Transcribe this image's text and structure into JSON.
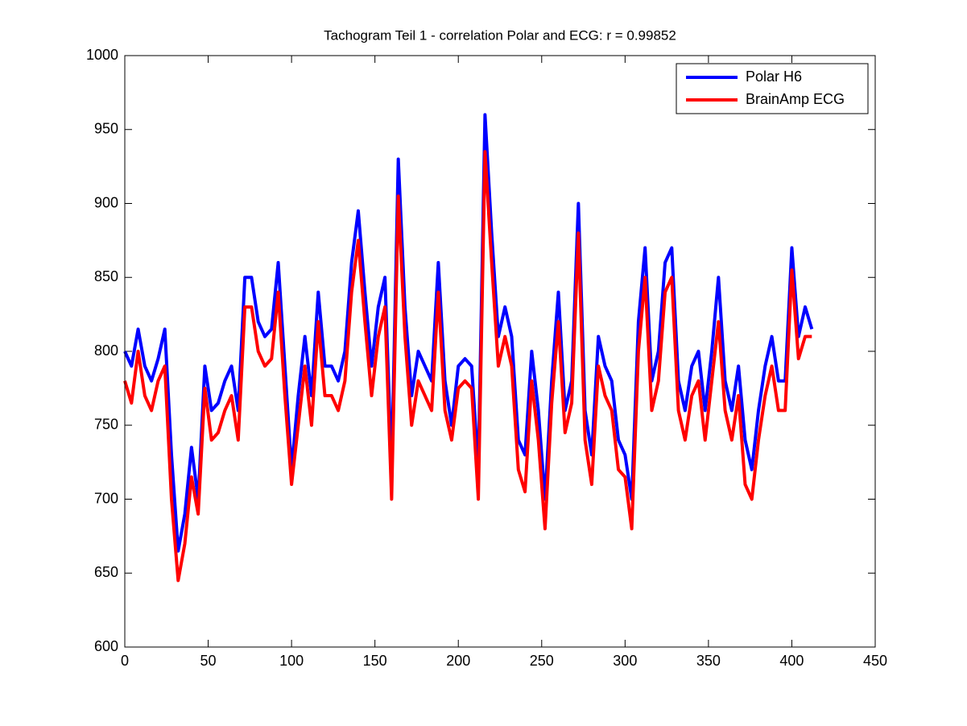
{
  "chart_data": {
    "type": "line",
    "title": "Tachogram Teil 1 - correlation Polar and ECG: r = 0.99852",
    "x": [
      0,
      4,
      8,
      12,
      16,
      20,
      24,
      28,
      32,
      36,
      40,
      44,
      48,
      52,
      56,
      60,
      64,
      68,
      72,
      76,
      80,
      84,
      88,
      92,
      96,
      100,
      104,
      108,
      112,
      116,
      120,
      124,
      128,
      132,
      136,
      140,
      144,
      148,
      152,
      156,
      160,
      164,
      168,
      172,
      176,
      180,
      184,
      188,
      192,
      196,
      200,
      204,
      208,
      212,
      216,
      220,
      224,
      228,
      232,
      236,
      240,
      244,
      248,
      252,
      256,
      260,
      264,
      268,
      272,
      276,
      280,
      284,
      288,
      292,
      296,
      300,
      304,
      308,
      312,
      316,
      320,
      324,
      328,
      332,
      336,
      340,
      344,
      348,
      352,
      356,
      360,
      364,
      368,
      372,
      376,
      380,
      384,
      388,
      392,
      396,
      400,
      404,
      408,
      412
    ],
    "series": [
      {
        "name": "Polar H6",
        "color": "#0000ff",
        "values": [
          800,
          790,
          815,
          790,
          780,
          795,
          815,
          730,
          665,
          690,
          735,
          700,
          790,
          760,
          765,
          780,
          790,
          760,
          850,
          850,
          820,
          810,
          815,
          860,
          790,
          720,
          770,
          810,
          770,
          840,
          790,
          790,
          780,
          800,
          860,
          895,
          840,
          790,
          830,
          850,
          720,
          930,
          830,
          770,
          800,
          790,
          780,
          860,
          780,
          750,
          790,
          795,
          790,
          720,
          960,
          880,
          810,
          830,
          810,
          740,
          730,
          800,
          760,
          700,
          780,
          840,
          760,
          780,
          900,
          760,
          730,
          810,
          790,
          780,
          740,
          730,
          700,
          820,
          870,
          780,
          800,
          860,
          870,
          780,
          760,
          790,
          800,
          760,
          800,
          850,
          780,
          760,
          790,
          740,
          720,
          760,
          790,
          810,
          780,
          780,
          870,
          810,
          830,
          815
        ]
      },
      {
        "name": "BrainAmp ECG",
        "color": "#ff0000",
        "values": [
          780,
          765,
          800,
          770,
          760,
          780,
          790,
          700,
          645,
          670,
          715,
          690,
          775,
          740,
          745,
          760,
          770,
          740,
          830,
          830,
          800,
          790,
          795,
          840,
          770,
          710,
          750,
          790,
          750,
          820,
          770,
          770,
          760,
          780,
          840,
          875,
          820,
          770,
          810,
          830,
          700,
          905,
          810,
          750,
          780,
          770,
          760,
          840,
          760,
          740,
          775,
          780,
          775,
          700,
          935,
          860,
          790,
          810,
          790,
          720,
          705,
          780,
          740,
          680,
          765,
          820,
          745,
          765,
          880,
          740,
          710,
          790,
          770,
          760,
          720,
          715,
          680,
          800,
          850,
          760,
          780,
          840,
          850,
          760,
          740,
          770,
          780,
          740,
          780,
          820,
          760,
          740,
          770,
          710,
          700,
          740,
          770,
          790,
          760,
          760,
          855,
          795,
          810,
          810
        ]
      }
    ],
    "xlim": [
      0,
      450
    ],
    "xticks": [
      0,
      50,
      100,
      150,
      200,
      250,
      300,
      350,
      400,
      450
    ],
    "ylim": [
      600,
      1000
    ],
    "yticks": [
      600,
      650,
      700,
      750,
      800,
      850,
      900,
      950,
      1000
    ],
    "grid": false,
    "legend": "northeast"
  }
}
